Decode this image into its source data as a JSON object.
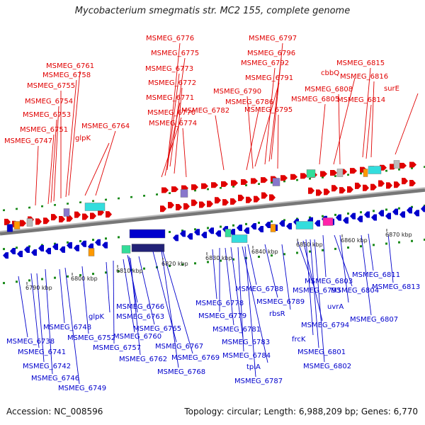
{
  "title": "Mycobacterium smegmatis str. MC2 155, complete genome",
  "accession": "Accession: NC_008596",
  "topology": "Topology: circular; Length: 6,988,209 bp; Genes: 6,770",
  "colors": {
    "forward": "#e00000",
    "reverse": "#0000cc",
    "backbone": "#999999",
    "dots": "#1a8a1a",
    "cds_cyan": "#33dddd",
    "trna_green": "#33dd99",
    "rrna_magenta": "#ff22aa",
    "gray_feature": "#bbbbbb",
    "orange_feature": "#ff9900",
    "purple_feature": "#8877cc",
    "navy_feature": "#222277"
  },
  "scale_labels": [
    "6790 kbp",
    "6800 kbp",
    "6810 kbp",
    "6820 kbp",
    "6830 kbp",
    "6840 kbp",
    "6850 kbp",
    "6860 kbp",
    "6870 kbp"
  ],
  "forward_labels": [
    "MSMEG_6776",
    "MSMEG_6775",
    "MSMEG_6773",
    "MSMEG_6772",
    "MSMEG_6771",
    "MSMEG_6770",
    "MSMEG_6774",
    "MSMEG_6761",
    "MSMEG_6758",
    "MSMEG_6755",
    "MSMEG_6754",
    "MSMEG_6753",
    "MSMEG_6751",
    "MSMEG_6747",
    "glpK",
    "MSMEG_6764",
    "MSMEG_6782",
    "MSMEG_6797",
    "MSMEG_6796",
    "MSMEG_6792",
    "MSMEG_6791",
    "MSMEG_6790",
    "MSMEG_6786",
    "MSMEG_6795",
    "cbbQ",
    "MSMEG_6808",
    "MSMEG_6805",
    "MSMEG_6815",
    "MSMEG_6816",
    "surE",
    "MSMEG_6814"
  ],
  "reverse_labels": [
    "MSMEG_6738",
    "MSMEG_6741",
    "MSMEG_6742",
    "MSMEG_6746",
    "MSMEG_6749",
    "MSMEG_6748",
    "MSMEG_6752",
    "glpK",
    "MSMEG_6757",
    "MSMEG_6760",
    "MSMEG_6762",
    "MSMEG_6763",
    "MSMEG_6765",
    "MSMEG_6766",
    "MSMEG_6767",
    "MSMEG_6769",
    "MSMEG_6768",
    "MSMEG_6778",
    "MSMEG_6779",
    "MSMEG_6781",
    "MSMEG_6783",
    "MSMEG_6784",
    "tpiA",
    "MSMEG_6787",
    "MSMEG_6788",
    "MSMEG_6789",
    "MSMEG_6793",
    "rbsR",
    "MSMEG_6794",
    "frcK",
    "MSMEG_6801",
    "MSMEG_6802",
    "MSMEG_6803",
    "MSMEG_6804",
    "uvrA",
    "MSMEG_6807",
    "MSMEG_6811",
    "MSMEG_6813",
    "MSMEG_6817"
  ]
}
